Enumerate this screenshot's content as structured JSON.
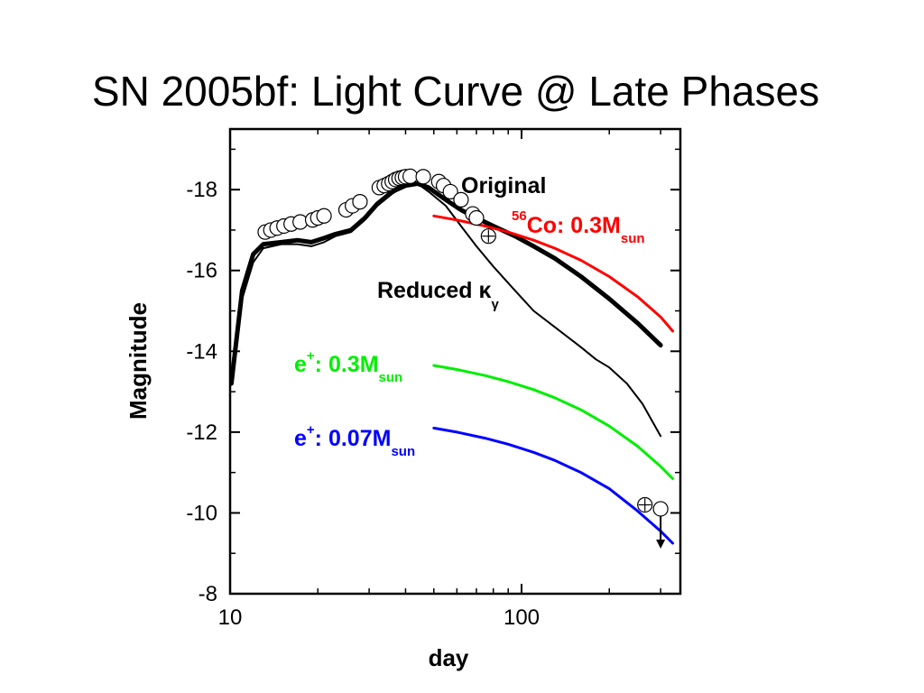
{
  "slide": {
    "title": "SN 2005bf: Light Curve @ Late Phases"
  },
  "chart_data": {
    "type": "line",
    "title": "",
    "xlabel": "day",
    "ylabel": "Magnitude",
    "x_scale": "log",
    "xlim": [
      10,
      330
    ],
    "ylim": [
      -8,
      -19.5
    ],
    "y_inverted": true,
    "x_ticks": [
      10,
      100
    ],
    "x_tick_labels": [
      "10",
      "100"
    ],
    "y_ticks": [
      -18,
      -16,
      -14,
      -12,
      -10,
      -8
    ],
    "y_tick_labels": [
      "-18",
      "-16",
      "-14",
      "-12",
      "-10",
      "-8"
    ],
    "grid": false,
    "series": [
      {
        "kind": "model",
        "color": "#000000",
        "width": 5,
        "points": [
          [
            10.1,
            -13.2
          ],
          [
            11,
            -15.5
          ],
          [
            12,
            -16.4
          ],
          [
            13,
            -16.65
          ],
          [
            15,
            -16.7
          ],
          [
            17,
            -16.75
          ],
          [
            19,
            -16.7
          ],
          [
            21,
            -16.8
          ],
          [
            23,
            -16.9
          ],
          [
            26,
            -17.0
          ],
          [
            29,
            -17.3
          ],
          [
            32,
            -17.65
          ],
          [
            36,
            -17.95
          ],
          [
            40,
            -18.1
          ],
          [
            44,
            -18.15
          ],
          [
            48,
            -18.05
          ],
          [
            55,
            -17.75
          ],
          [
            62,
            -17.5
          ],
          [
            70,
            -17.3
          ],
          [
            80,
            -17.1
          ],
          [
            95,
            -16.85
          ],
          [
            110,
            -16.6
          ],
          [
            130,
            -16.3
          ],
          [
            160,
            -15.85
          ],
          [
            200,
            -15.3
          ],
          [
            250,
            -14.7
          ],
          [
            300,
            -14.15
          ]
        ]
      },
      {
        "kind": "model",
        "color": "#000000",
        "width": 2,
        "points": [
          [
            11,
            -15.3
          ],
          [
            12,
            -16.2
          ],
          [
            13,
            -16.55
          ],
          [
            15,
            -16.65
          ],
          [
            17,
            -16.65
          ],
          [
            19,
            -16.6
          ],
          [
            21,
            -16.7
          ],
          [
            23,
            -16.85
          ],
          [
            26,
            -16.95
          ],
          [
            29,
            -17.25
          ],
          [
            32,
            -17.6
          ],
          [
            36,
            -17.9
          ],
          [
            40,
            -18.1
          ],
          [
            44,
            -18.15
          ],
          [
            48,
            -17.95
          ],
          [
            55,
            -17.6
          ],
          [
            62,
            -17.1
          ],
          [
            70,
            -16.6
          ],
          [
            80,
            -16.1
          ],
          [
            95,
            -15.5
          ],
          [
            110,
            -15.0
          ],
          [
            130,
            -14.6
          ],
          [
            160,
            -14.1
          ],
          [
            180,
            -13.8
          ],
          [
            200,
            -13.6
          ],
          [
            230,
            -13.2
          ],
          [
            260,
            -12.7
          ],
          [
            300,
            -11.9
          ]
        ]
      },
      {
        "kind": "model",
        "color": "#ff0000",
        "width": 3,
        "points": [
          [
            50,
            -17.35
          ],
          [
            60,
            -17.25
          ],
          [
            75,
            -17.1
          ],
          [
            90,
            -16.95
          ],
          [
            110,
            -16.75
          ],
          [
            130,
            -16.55
          ],
          [
            160,
            -16.25
          ],
          [
            200,
            -15.85
          ],
          [
            250,
            -15.35
          ],
          [
            300,
            -14.85
          ],
          [
            330,
            -14.5
          ]
        ]
      },
      {
        "kind": "model",
        "color": "#00ee00",
        "width": 3,
        "points": [
          [
            50,
            -13.65
          ],
          [
            60,
            -13.55
          ],
          [
            75,
            -13.4
          ],
          [
            90,
            -13.25
          ],
          [
            110,
            -13.05
          ],
          [
            130,
            -12.85
          ],
          [
            160,
            -12.55
          ],
          [
            200,
            -12.15
          ],
          [
            250,
            -11.65
          ],
          [
            300,
            -11.15
          ],
          [
            330,
            -10.85
          ]
        ]
      },
      {
        "kind": "model",
        "color": "#0000ff",
        "width": 3,
        "points": [
          [
            50,
            -12.1
          ],
          [
            60,
            -12.0
          ],
          [
            75,
            -11.85
          ],
          [
            90,
            -11.7
          ],
          [
            110,
            -11.5
          ],
          [
            130,
            -11.3
          ],
          [
            160,
            -11.0
          ],
          [
            200,
            -10.6
          ],
          [
            250,
            -10.05
          ],
          [
            300,
            -9.55
          ],
          [
            330,
            -9.25
          ]
        ]
      },
      {
        "kind": "observed",
        "marker": "open-circle",
        "points": [
          [
            13.2,
            -16.95
          ],
          [
            13.8,
            -17.0
          ],
          [
            14.5,
            -17.05
          ],
          [
            15.3,
            -17.1
          ],
          [
            16.2,
            -17.15
          ],
          [
            17.4,
            -17.2
          ],
          [
            19.2,
            -17.25
          ],
          [
            20,
            -17.3
          ],
          [
            21,
            -17.35
          ],
          [
            25,
            -17.5
          ],
          [
            26.3,
            -17.6
          ],
          [
            27.9,
            -17.7
          ],
          [
            32.5,
            -18.05
          ],
          [
            33.8,
            -18.1
          ],
          [
            35,
            -18.15
          ],
          [
            36,
            -18.2
          ],
          [
            37,
            -18.25
          ],
          [
            38,
            -18.28
          ],
          [
            39,
            -18.3
          ],
          [
            40,
            -18.32
          ],
          [
            41.5,
            -18.33
          ],
          [
            46,
            -18.32
          ],
          [
            52,
            -18.2
          ],
          [
            54,
            -18.1
          ],
          [
            57,
            -17.95
          ],
          [
            62,
            -17.75
          ],
          [
            68,
            -17.4
          ],
          [
            70,
            -17.3
          ]
        ]
      },
      {
        "kind": "observed",
        "marker": "crossed-circle",
        "points": [
          [
            77,
            -16.85
          ],
          [
            265,
            -10.2
          ]
        ]
      },
      {
        "kind": "upper-limit",
        "marker": "open-circle-arrow",
        "points": [
          [
            300,
            -10.1
          ]
        ]
      }
    ],
    "annotations": [
      {
        "id": "original",
        "text": "Original",
        "color": "#000000"
      },
      {
        "id": "co56",
        "sup": "56",
        "text": "Co: 0.3M",
        "sub": "sun",
        "color": "#ff0000"
      },
      {
        "id": "reduced",
        "text": "Reduced κ",
        "sub": "γ",
        "color": "#000000"
      },
      {
        "id": "ep03",
        "text": "e",
        "sup": "+",
        "text2": ": 0.3M",
        "sub": "sun",
        "color": "#00ee00"
      },
      {
        "id": "ep007",
        "text": "e",
        "sup": "+",
        "text2": ": 0.07M",
        "sub": "sun",
        "color": "#0000ff"
      }
    ]
  }
}
